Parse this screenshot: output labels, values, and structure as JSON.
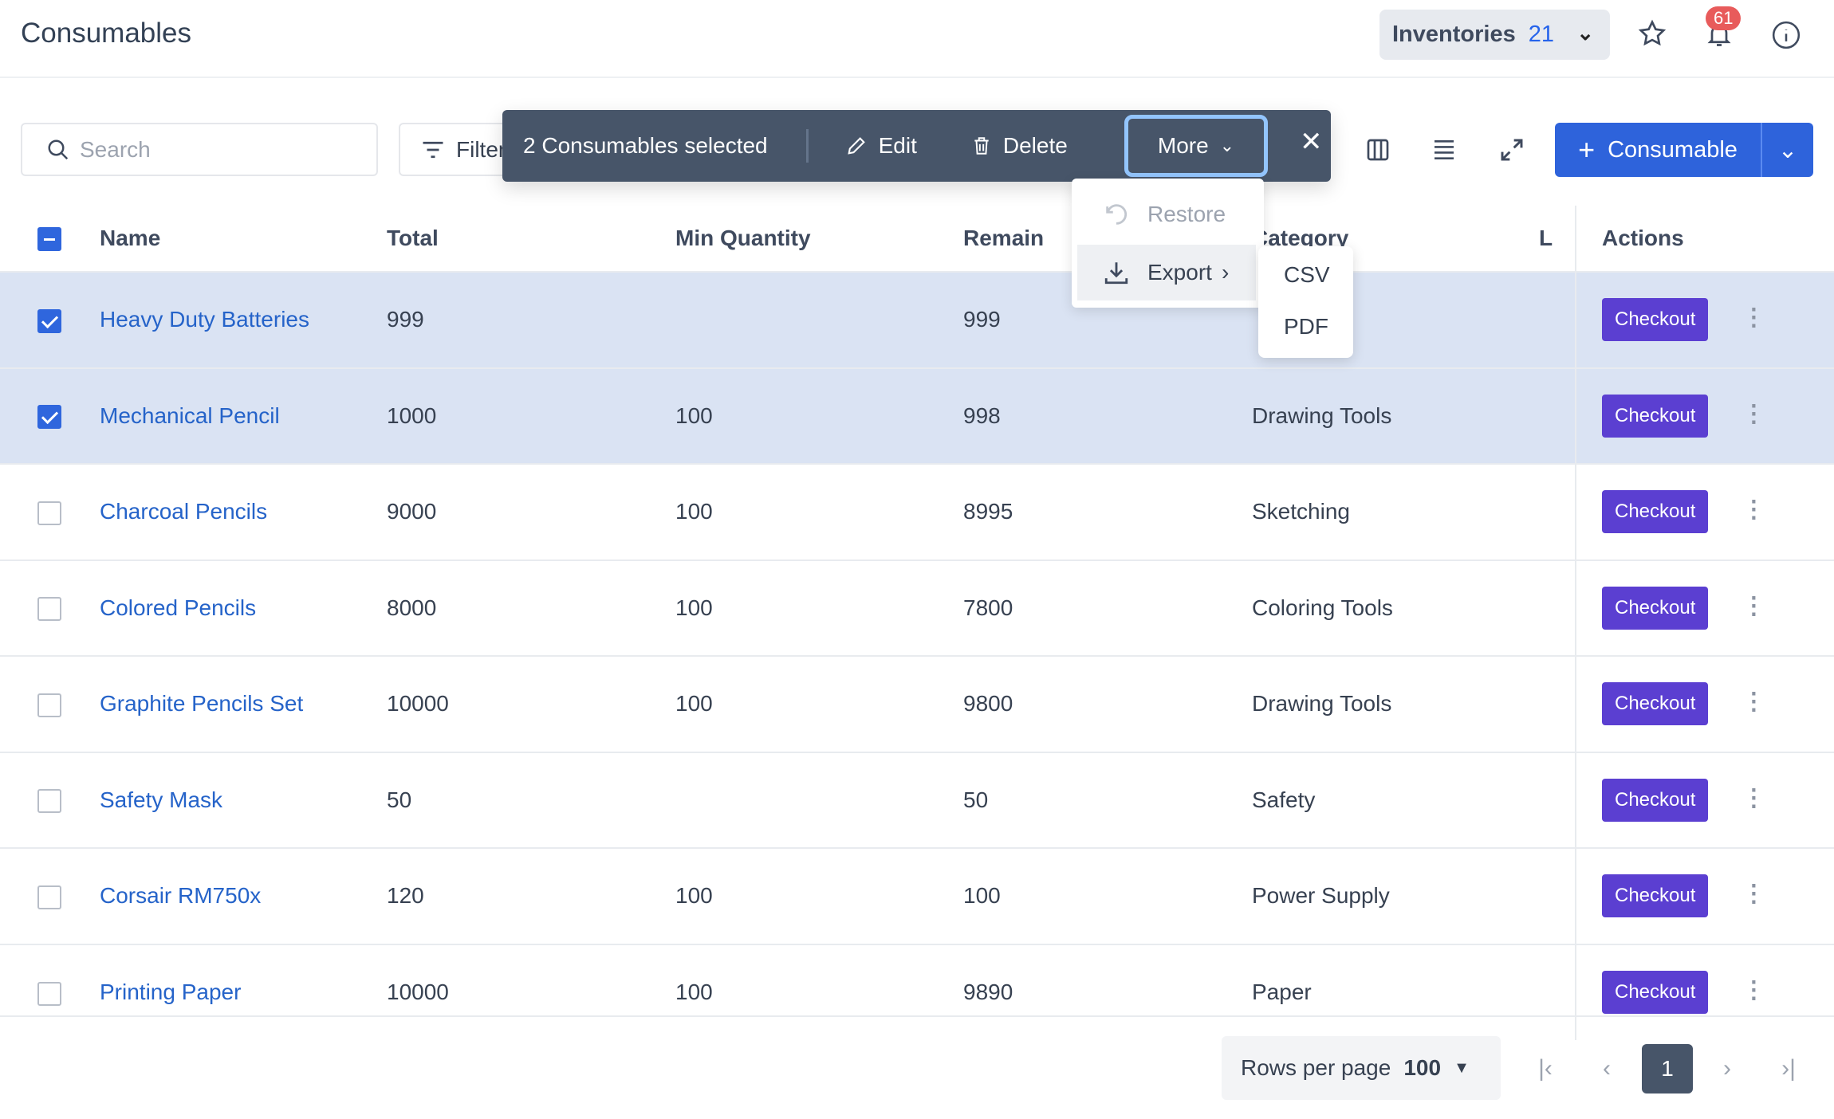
{
  "header": {
    "title": "Consumables",
    "inventory_label": "Inventories",
    "inventory_count": "21",
    "notification_count": "61"
  },
  "toolbar": {
    "search_placeholder": "Search",
    "filter_label": "Filter",
    "add_label": "Consumable"
  },
  "bulk": {
    "selected_text": "2 Consumables selected",
    "edit": "Edit",
    "delete": "Delete",
    "more": "More"
  },
  "menu": {
    "restore": "Restore",
    "export": "Export",
    "submenu": [
      "CSV",
      "PDF"
    ]
  },
  "table": {
    "columns": [
      "Name",
      "Total",
      "Min Quantity",
      "Remain",
      "Category",
      "L",
      "Actions"
    ],
    "checkout_label": "Checkout",
    "rows": [
      {
        "selected": true,
        "name": "Heavy Duty Batteries",
        "total": "999",
        "min": "",
        "remain": "999",
        "category": ""
      },
      {
        "selected": true,
        "name": "Mechanical Pencil",
        "total": "1000",
        "min": "100",
        "remain": "998",
        "category": "Drawing Tools"
      },
      {
        "selected": false,
        "name": "Charcoal Pencils",
        "total": "9000",
        "min": "100",
        "remain": "8995",
        "category": "Sketching"
      },
      {
        "selected": false,
        "name": "Colored Pencils",
        "total": "8000",
        "min": "100",
        "remain": "7800",
        "category": "Coloring Tools"
      },
      {
        "selected": false,
        "name": "Graphite Pencils Set",
        "total": "10000",
        "min": "100",
        "remain": "9800",
        "category": "Drawing Tools"
      },
      {
        "selected": false,
        "name": "Safety Mask",
        "total": "50",
        "min": "",
        "remain": "50",
        "category": "Safety"
      },
      {
        "selected": false,
        "name": "Corsair RM750x",
        "total": "120",
        "min": "100",
        "remain": "100",
        "category": "Power Supply"
      },
      {
        "selected": false,
        "name": "Printing Paper",
        "total": "10000",
        "min": "100",
        "remain": "9890",
        "category": "Paper"
      }
    ]
  },
  "footer": {
    "rows_per_page_label": "Rows per page",
    "rows_per_page": "100",
    "current_page": "1"
  }
}
